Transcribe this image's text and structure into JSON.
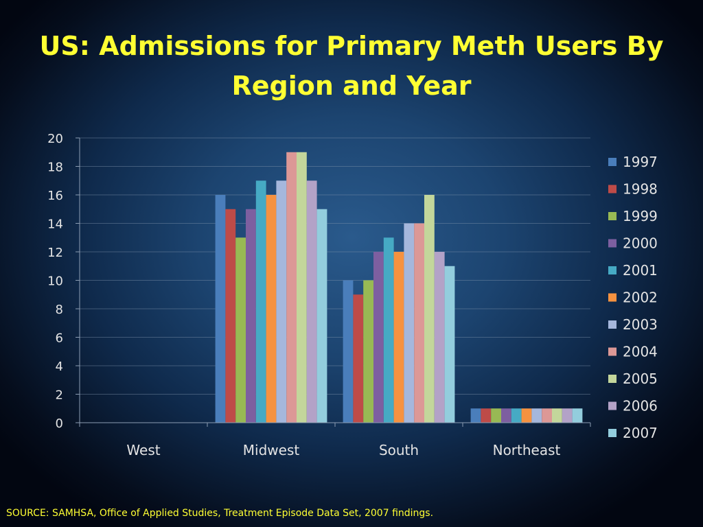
{
  "title": {
    "line1": "US: Admissions for Primary Meth Users By",
    "line2": "Region and Year"
  },
  "source": "SOURCE: SAMHSA, Office of Applied Studies, Treatment Episode Data Set, 2007 findings.",
  "chart_data": {
    "type": "bar",
    "categories": [
      "West",
      "Midwest",
      "South",
      "Northeast"
    ],
    "ylim": [
      0,
      20
    ],
    "yticks": [
      0,
      2,
      4,
      6,
      8,
      10,
      12,
      14,
      16,
      18,
      20
    ],
    "grid": true,
    "legend_position": "right",
    "series": [
      {
        "name": "1997",
        "color": "#4a7ebb",
        "values": [
          0,
          16,
          10,
          1
        ]
      },
      {
        "name": "1998",
        "color": "#be4b48",
        "values": [
          0,
          15,
          9,
          1
        ]
      },
      {
        "name": "1999",
        "color": "#98b954",
        "values": [
          0,
          13,
          10,
          1
        ]
      },
      {
        "name": "2000",
        "color": "#7d5fa0",
        "values": [
          0,
          15,
          12,
          1
        ]
      },
      {
        "name": "2001",
        "color": "#46aac4",
        "values": [
          0,
          17,
          13,
          1
        ]
      },
      {
        "name": "2002",
        "color": "#f69240",
        "values": [
          0,
          16,
          12,
          1
        ]
      },
      {
        "name": "2003",
        "color": "#a5b7dc",
        "values": [
          0,
          17,
          14,
          1
        ]
      },
      {
        "name": "2004",
        "color": "#dc9896",
        "values": [
          0,
          19,
          14,
          1
        ]
      },
      {
        "name": "2005",
        "color": "#c3d69b",
        "values": [
          0,
          19,
          16,
          1
        ]
      },
      {
        "name": "2006",
        "color": "#b3a2c7",
        "values": [
          0,
          17,
          12,
          1
        ]
      },
      {
        "name": "2007",
        "color": "#93cddd",
        "values": [
          0,
          15,
          11,
          1
        ]
      }
    ]
  }
}
